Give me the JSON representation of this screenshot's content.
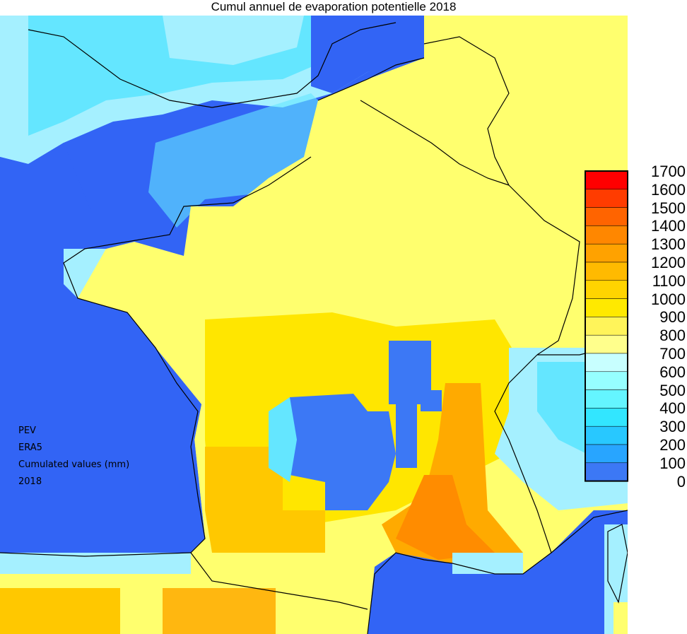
{
  "title": "Cumul annuel de evaporation potentielle 2018",
  "annotation": [
    "PEV",
    "ERA5",
    "Cumulated values (mm)",
    "2018"
  ],
  "legend": {
    "ticks": [
      "1700",
      "1600",
      "1500",
      "1400",
      "1300",
      "1200",
      "1100",
      "1000",
      "900",
      "800",
      "700",
      "600",
      "500",
      "400",
      "300",
      "200",
      "100",
      "0"
    ],
    "colors": [
      "#ff0000",
      "#ff3c00",
      "#ff6400",
      "#ff8700",
      "#ffa200",
      "#ffba00",
      "#ffd400",
      "#ffe900",
      "#fff45a",
      "#ffff8c",
      "#c8ffff",
      "#96ffff",
      "#64f5ff",
      "#32e6ff",
      "#28c8ff",
      "#28a5ff",
      "#3c78f5",
      "#3264ff"
    ]
  },
  "palette": {
    "sea": "#3264f5",
    "coast_cyan": "#64e6ff",
    "light_cyan": "#a5f0ff",
    "land_yellow": "#ffff6e",
    "yellow2": "#ffe600",
    "orange1": "#ffc800",
    "orange2": "#ffaa00",
    "orange3": "#ff8c00",
    "border_line": "#000000"
  }
}
